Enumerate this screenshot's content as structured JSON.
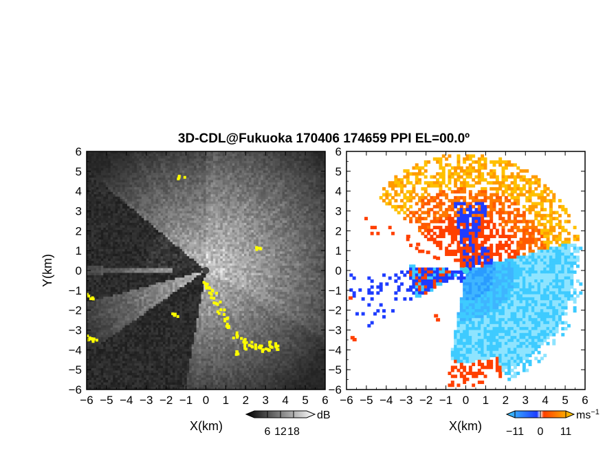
{
  "figure": {
    "title": "3D-CDL@Fukuoka 170406 174659 PPI EL=00.0º"
  },
  "colors": {
    "background": "#ffffff",
    "reflectivity_low": "#1a1a1a",
    "reflectivity_high": "#f2f2f2",
    "overlay_yellow": "#ffff00",
    "velocity_neg_strong": "#1e3cff",
    "velocity_neg_light": "#3ecbff",
    "velocity_pos_strong": "#ff4000",
    "velocity_pos_light": "#ffd000",
    "radar_site": "#3ad6e8"
  },
  "chart_data": [
    {
      "type": "heatmap",
      "panel": "left",
      "quantity": "signal intensity",
      "xlabel": "X(km)",
      "ylabel": "Y(km)",
      "xlim": [
        -6,
        6
      ],
      "ylim": [
        -6,
        6
      ],
      "x_ticks": [
        "−6",
        "−5",
        "−4",
        "−3",
        "−2",
        "−1",
        "0",
        "1",
        "2",
        "3",
        "4",
        "5",
        "6"
      ],
      "y_ticks": [
        "6",
        "5",
        "4",
        "3",
        "2",
        "1",
        "0",
        "−1",
        "−2",
        "−3",
        "−4",
        "−5",
        "−6"
      ],
      "colorbar": {
        "unit": "dB",
        "ticks": [
          "6",
          "12",
          "18"
        ],
        "range": [
          0,
          24
        ]
      },
      "radar_site": [
        0,
        0
      ]
    },
    {
      "type": "heatmap",
      "panel": "right",
      "quantity": "doppler velocity",
      "xlabel": "X(km)",
      "xlim": [
        -6,
        6
      ],
      "ylim": [
        -6,
        6
      ],
      "x_ticks": [
        "−6",
        "−5",
        "−4",
        "−3",
        "−2",
        "−1",
        "0",
        "1",
        "2",
        "3",
        "4",
        "5",
        "6"
      ],
      "y_ticks": [
        "6",
        "5",
        "4",
        "3",
        "2",
        "1",
        "0",
        "−1",
        "−2",
        "−3",
        "−4",
        "−5",
        "−6"
      ],
      "colorbar": {
        "unit": "ms",
        "unit_exponent": "−1",
        "ticks": [
          "−11",
          "0",
          "11"
        ],
        "range": [
          -11,
          11
        ]
      },
      "radar_site": [
        0,
        0
      ]
    }
  ]
}
